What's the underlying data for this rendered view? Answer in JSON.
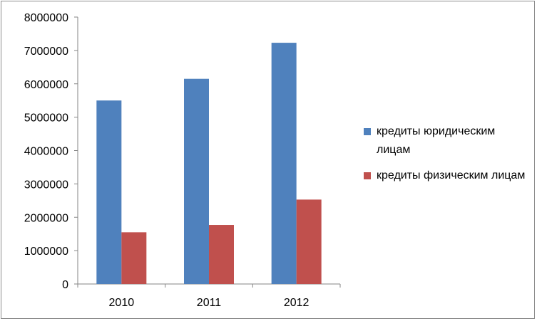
{
  "chart_data": {
    "type": "bar",
    "categories": [
      "2010",
      "2011",
      "2012"
    ],
    "series": [
      {
        "name": "кредиты юридическим лицам",
        "color": "#4f81bd",
        "values": [
          5500000,
          6150000,
          7230000
        ]
      },
      {
        "name": "кредиты физическим лицам",
        "color": "#c0504d",
        "values": [
          1550000,
          1770000,
          2530000
        ]
      }
    ],
    "yticks": [
      "0",
      "1000000",
      "2000000",
      "3000000",
      "4000000",
      "5000000",
      "6000000",
      "7000000",
      "8000000"
    ],
    "ylim": [
      0,
      8000000
    ],
    "legend_position": "right",
    "grid": false
  }
}
